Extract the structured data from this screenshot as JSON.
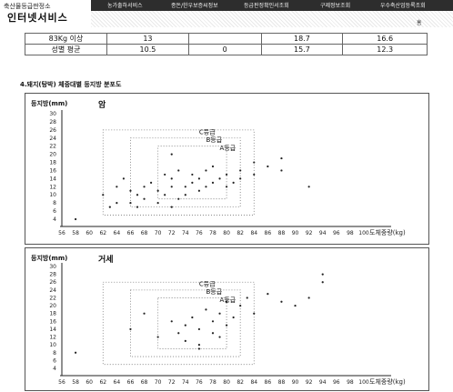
{
  "header": {
    "org": "축산물등급판정소",
    "service": "인터넷서비스",
    "nav": [
      "농가출하서비스",
      "종돈/한우보증씨정보",
      "등급판정확인서조회",
      "구제정보조회",
      "우수축산업등록조회"
    ],
    "home": "홈"
  },
  "table": {
    "rows": [
      {
        "label": "83Kg 이상",
        "c1": "13",
        "c2": "",
        "c3": "18.7",
        "c4": "16.6"
      },
      {
        "label": "성별 평균",
        "c1": "10.5",
        "c2": "0",
        "c3": "15.7",
        "c4": "12.3"
      }
    ]
  },
  "section_title": "4.돼지(탕박) 체중대별 등지방 분포도",
  "chart_data": [
    {
      "type": "scatter",
      "title": "암",
      "ylabel": "등지방(mm)",
      "xlabel": "도체중량(kg)",
      "ylim": [
        4,
        30
      ],
      "yticks": [
        30,
        28,
        26,
        24,
        22,
        20,
        18,
        16,
        14,
        12,
        10,
        8,
        6,
        4
      ],
      "xlim": [
        56,
        100
      ],
      "xticks": [
        56,
        58,
        60,
        62,
        64,
        66,
        68,
        70,
        72,
        74,
        76,
        78,
        80,
        82,
        84,
        86,
        88,
        90,
        92,
        94,
        96,
        98,
        100
      ],
      "grade_labels": [
        "C등급",
        "B등급",
        "A등급"
      ],
      "points": [
        [
          58,
          4
        ],
        [
          62,
          10
        ],
        [
          63,
          7
        ],
        [
          64,
          8
        ],
        [
          64,
          12
        ],
        [
          65,
          14
        ],
        [
          66,
          8
        ],
        [
          66,
          11
        ],
        [
          67,
          7
        ],
        [
          67,
          10
        ],
        [
          68,
          9
        ],
        [
          68,
          12
        ],
        [
          69,
          13
        ],
        [
          70,
          8
        ],
        [
          70,
          11
        ],
        [
          71,
          10
        ],
        [
          71,
          15
        ],
        [
          72,
          7
        ],
        [
          72,
          12
        ],
        [
          72,
          14
        ],
        [
          73,
          9
        ],
        [
          73,
          16
        ],
        [
          74,
          10
        ],
        [
          74,
          12
        ],
        [
          75,
          13
        ],
        [
          75,
          15
        ],
        [
          76,
          11
        ],
        [
          76,
          14
        ],
        [
          77,
          12
        ],
        [
          77,
          16
        ],
        [
          78,
          13
        ],
        [
          78,
          17
        ],
        [
          79,
          14
        ],
        [
          80,
          12
        ],
        [
          80,
          15
        ],
        [
          81,
          13
        ],
        [
          82,
          14
        ],
        [
          82,
          16
        ],
        [
          84,
          15
        ],
        [
          84,
          18
        ],
        [
          86,
          17
        ],
        [
          88,
          16
        ],
        [
          88,
          19
        ],
        [
          92,
          12
        ],
        [
          72,
          20
        ]
      ]
    },
    {
      "type": "scatter",
      "title": "거세",
      "ylabel": "등지방(mm)",
      "xlabel": "도체중량(kg)",
      "ylim": [
        4,
        30
      ],
      "yticks": [
        30,
        28,
        26,
        24,
        22,
        20,
        18,
        16,
        14,
        12,
        10,
        8,
        6,
        4
      ],
      "xlim": [
        56,
        100
      ],
      "xticks": [
        56,
        58,
        60,
        62,
        64,
        66,
        68,
        70,
        72,
        74,
        76,
        78,
        80,
        82,
        84,
        86,
        88,
        90,
        92,
        94,
        96,
        98,
        100
      ],
      "grade_labels": [
        "C등급",
        "B등급",
        "A등급"
      ],
      "points": [
        [
          58,
          8
        ],
        [
          66,
          14
        ],
        [
          68,
          18
        ],
        [
          70,
          12
        ],
        [
          72,
          16
        ],
        [
          73,
          13
        ],
        [
          74,
          15
        ],
        [
          74,
          11
        ],
        [
          75,
          17
        ],
        [
          76,
          14
        ],
        [
          76,
          10
        ],
        [
          77,
          19
        ],
        [
          78,
          16
        ],
        [
          78,
          13
        ],
        [
          79,
          18
        ],
        [
          80,
          15
        ],
        [
          80,
          21
        ],
        [
          81,
          17
        ],
        [
          82,
          20
        ],
        [
          83,
          22
        ],
        [
          84,
          18
        ],
        [
          86,
          23
        ],
        [
          88,
          21
        ],
        [
          90,
          20
        ],
        [
          92,
          22
        ],
        [
          94,
          26
        ],
        [
          94,
          28
        ],
        [
          76,
          9
        ],
        [
          79,
          12
        ]
      ]
    }
  ]
}
